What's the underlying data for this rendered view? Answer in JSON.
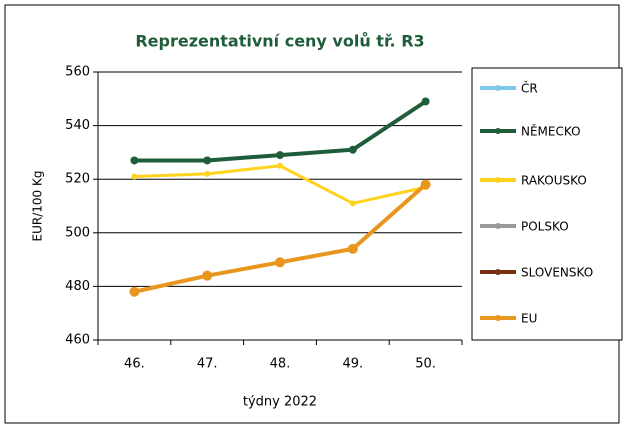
{
  "chart_data": {
    "type": "line",
    "title": "Reprezentativní ceny volů tř. R3",
    "ylabel": "EUR/100 Kg",
    "xlabel": "týdny 2022",
    "categories": [
      "46.",
      "47.",
      "48.",
      "49.",
      "50."
    ],
    "series": [
      {
        "name": "ČR",
        "color": "#7ec8e8",
        "values": [
          null,
          null,
          null,
          null,
          null
        ]
      },
      {
        "name": "NĚMECKO",
        "color": "#1e5c3a",
        "values": [
          527,
          527,
          529,
          531,
          549
        ]
      },
      {
        "name": "RAKOUSKO",
        "color": "#ffd21e",
        "values": [
          521,
          522,
          525,
          511,
          517
        ]
      },
      {
        "name": "POLSKO",
        "color": "#999999",
        "values": [
          null,
          null,
          null,
          null,
          null
        ]
      },
      {
        "name": "SLOVENSKO",
        "color": "#7a2e12",
        "values": [
          null,
          null,
          null,
          null,
          null
        ]
      },
      {
        "name": "EU",
        "color": "#e8961e",
        "values": [
          478,
          484,
          489,
          494,
          518
        ]
      }
    ],
    "ylim": [
      460,
      560
    ],
    "yticks": [
      460,
      480,
      500,
      520,
      540,
      560
    ],
    "grid": true,
    "legend": "right"
  }
}
